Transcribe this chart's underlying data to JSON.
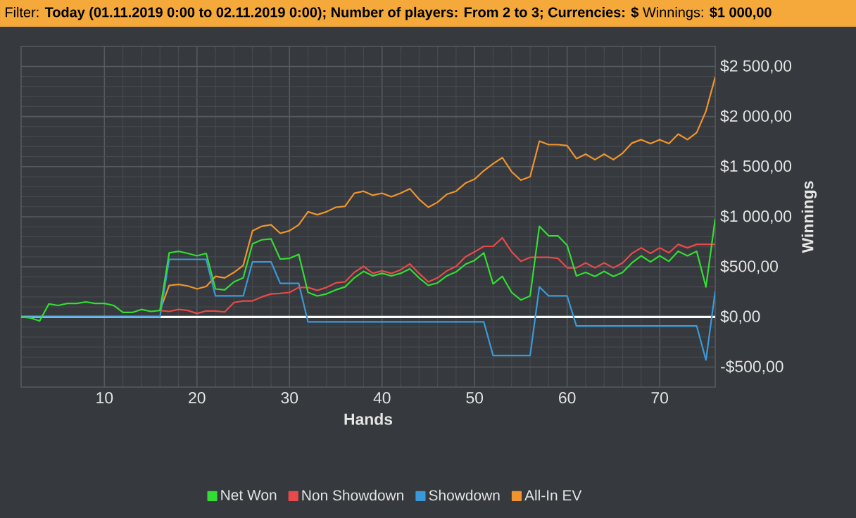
{
  "chart_data": {
    "type": "line",
    "title": "Filter: **Today (01.11.2019 0:00 to 02.11.2019 0:00); Number of players: From 2 to 3; Currencies: $** Winnings: **$1 000,00**",
    "xlabel": "Hands",
    "ylabel": "Winnings",
    "x": [
      1,
      2,
      3,
      4,
      5,
      6,
      7,
      8,
      9,
      10,
      11,
      12,
      13,
      14,
      15,
      16,
      17,
      18,
      19,
      20,
      21,
      22,
      23,
      24,
      25,
      26,
      27,
      28,
      29,
      30,
      31,
      32,
      33,
      34,
      35,
      36,
      37,
      38,
      39,
      40,
      41,
      42,
      43,
      44,
      45,
      46,
      47,
      48,
      49,
      50,
      51,
      52,
      53,
      54,
      55,
      56,
      57,
      58,
      59,
      60,
      61,
      62,
      63,
      64,
      65,
      66,
      67,
      68,
      69,
      70,
      71,
      72,
      73,
      74,
      75,
      76
    ],
    "series": [
      {
        "name": "Net Won",
        "color": "#33dd33",
        "values": [
          0,
          -10,
          -40,
          130,
          115,
          135,
          135,
          150,
          135,
          135,
          115,
          45,
          45,
          75,
          55,
          65,
          640,
          655,
          635,
          610,
          635,
          280,
          270,
          350,
          390,
          730,
          770,
          780,
          577,
          585,
          625,
          245,
          210,
          230,
          270,
          300,
          390,
          455,
          410,
          435,
          410,
          435,
          480,
          390,
          315,
          340,
          410,
          450,
          525,
          565,
          640,
          330,
          405,
          245,
          170,
          210,
          905,
          810,
          810,
          715,
          410,
          445,
          405,
          455,
          405,
          445,
          540,
          610,
          550,
          610,
          555,
          655,
          610,
          655,
          300,
          980
        ]
      },
      {
        "name": "Non Showdown",
        "color": "#e84a4a",
        "values": [
          null,
          null,
          null,
          null,
          null,
          null,
          null,
          null,
          null,
          null,
          null,
          null,
          null,
          null,
          null,
          65,
          55,
          75,
          65,
          35,
          60,
          60,
          50,
          145,
          160,
          160,
          200,
          230,
          235,
          245,
          295,
          295,
          265,
          295,
          340,
          350,
          445,
          505,
          435,
          460,
          435,
          470,
          530,
          435,
          350,
          390,
          460,
          505,
          600,
          650,
          705,
          705,
          790,
          650,
          555,
          595,
          595,
          595,
          585,
          490,
          490,
          540,
          490,
          540,
          490,
          540,
          635,
          690,
          635,
          690,
          640,
          725,
          690,
          725,
          725,
          725
        ]
      },
      {
        "name": "Showdown",
        "color": "#3a9ad9",
        "values": [
          0,
          0,
          0,
          0,
          0,
          0,
          0,
          0,
          0,
          0,
          0,
          0,
          0,
          0,
          0,
          0,
          575,
          575,
          575,
          575,
          575,
          210,
          210,
          210,
          210,
          550,
          550,
          550,
          335,
          335,
          335,
          -50,
          -50,
          -50,
          -50,
          -50,
          -50,
          -50,
          -50,
          -50,
          -50,
          -50,
          -50,
          -50,
          -50,
          -50,
          -50,
          -50,
          -50,
          -50,
          -50,
          -385,
          -385,
          -385,
          -385,
          -385,
          300,
          210,
          210,
          210,
          -90,
          -90,
          -90,
          -90,
          -90,
          -90,
          -90,
          -90,
          -90,
          -90,
          -90,
          -90,
          -90,
          -90,
          -430,
          255
        ]
      },
      {
        "name": "All-In EV",
        "color": "#f0952e",
        "values": [
          null,
          null,
          null,
          null,
          null,
          null,
          null,
          null,
          null,
          null,
          null,
          null,
          null,
          null,
          null,
          65,
          315,
          325,
          310,
          280,
          305,
          405,
          390,
          445,
          515,
          860,
          905,
          920,
          835,
          860,
          920,
          1050,
          1020,
          1050,
          1095,
          1105,
          1235,
          1255,
          1215,
          1235,
          1200,
          1235,
          1280,
          1175,
          1095,
          1145,
          1225,
          1255,
          1335,
          1375,
          1460,
          1530,
          1590,
          1450,
          1365,
          1400,
          1755,
          1720,
          1720,
          1710,
          1580,
          1625,
          1570,
          1625,
          1570,
          1635,
          1735,
          1770,
          1730,
          1770,
          1730,
          1825,
          1770,
          1840,
          2055,
          2395
        ]
      }
    ],
    "xlim": [
      1,
      76
    ],
    "ylim": [
      -700,
      2700
    ],
    "xticks": [
      10,
      20,
      30,
      40,
      50,
      60,
      70
    ],
    "yticks": [
      {
        "value": -500,
        "label": "-$500,00"
      },
      {
        "value": 0,
        "label": "$0,00"
      },
      {
        "value": 500,
        "label": "$500,00"
      },
      {
        "value": 1000,
        "label": "$1 000,00"
      },
      {
        "value": 1500,
        "label": "$1 500,00"
      },
      {
        "value": 2000,
        "label": "$2 000,00"
      },
      {
        "value": 2500,
        "label": "$2 500,00"
      }
    ],
    "ref_lines": [
      {
        "axis": "y",
        "value": 0,
        "color": "#ffffff"
      }
    ],
    "grid": true,
    "legend": "bottom"
  }
}
